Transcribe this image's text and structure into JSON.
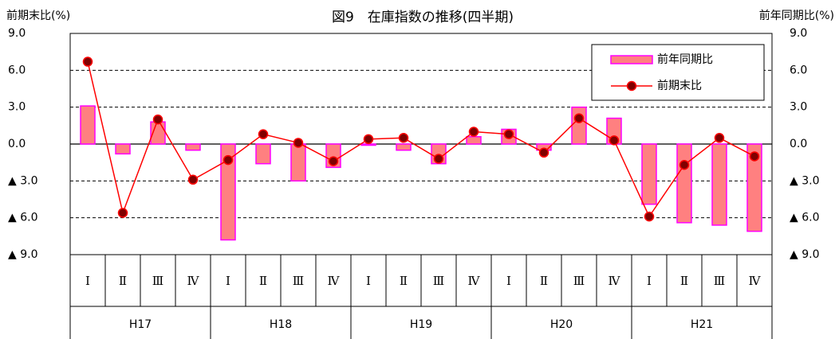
{
  "chart_data": {
    "type": "bar_line",
    "title": "図9　在庫指数の推移(四半期)",
    "y_axis_title": "前期末比(%)",
    "y2_axis_title": "前年同期比(%)",
    "categories": [
      "Ⅰ",
      "Ⅱ",
      "Ⅲ",
      "Ⅳ",
      "Ⅰ",
      "Ⅱ",
      "Ⅲ",
      "Ⅳ",
      "Ⅰ",
      "Ⅱ",
      "Ⅲ",
      "Ⅳ",
      "Ⅰ",
      "Ⅱ",
      "Ⅲ",
      "Ⅳ",
      "Ⅰ",
      "Ⅱ",
      "Ⅲ",
      "Ⅳ"
    ],
    "groups": [
      "H17",
      "H18",
      "H19",
      "H20",
      "H21"
    ],
    "series": [
      {
        "name": "前年同期比",
        "type": "bar",
        "axis": "y2",
        "color": "#ff8080",
        "edge": "#ff00ff",
        "values": [
          3.1,
          -0.8,
          1.8,
          -0.5,
          -7.8,
          -1.6,
          -3.0,
          -1.9,
          -0.1,
          -0.5,
          -1.6,
          0.6,
          1.2,
          -0.5,
          3.0,
          2.1,
          -4.9,
          -6.4,
          -6.6,
          -7.1
        ]
      },
      {
        "name": "前期末比",
        "type": "line",
        "axis": "y",
        "color": "#ff0000",
        "marker": "#800000",
        "values": [
          6.7,
          -5.6,
          2.0,
          -2.9,
          -1.3,
          0.8,
          0.1,
          -1.4,
          0.4,
          0.5,
          -1.2,
          1.0,
          0.8,
          -0.7,
          2.1,
          0.3,
          -5.9,
          -1.7,
          0.5,
          -1.0
        ]
      }
    ],
    "ylim": [
      -9,
      9
    ],
    "yticks": [
      {
        "value": 9,
        "label": "9.0"
      },
      {
        "value": 6,
        "label": "6.0"
      },
      {
        "value": 3,
        "label": "3.0"
      },
      {
        "value": 0,
        "label": "0.0"
      },
      {
        "value": -3,
        "label": "▲ 3.0"
      },
      {
        "value": -6,
        "label": "▲ 6.0"
      },
      {
        "value": -9,
        "label": "▲ 9.0"
      }
    ],
    "y2lim": [
      -9,
      9
    ],
    "y2ticks": [
      {
        "value": 9,
        "label": "9.0"
      },
      {
        "value": 6,
        "label": "6.0"
      },
      {
        "value": 3,
        "label": "3.0"
      },
      {
        "value": 0,
        "label": "0.0"
      },
      {
        "value": -3,
        "label": "▲ 3.0"
      },
      {
        "value": -6,
        "label": "▲ 6.0"
      },
      {
        "value": -9,
        "label": "▲ 9.0"
      }
    ],
    "grid": true,
    "legend": "upper right"
  }
}
